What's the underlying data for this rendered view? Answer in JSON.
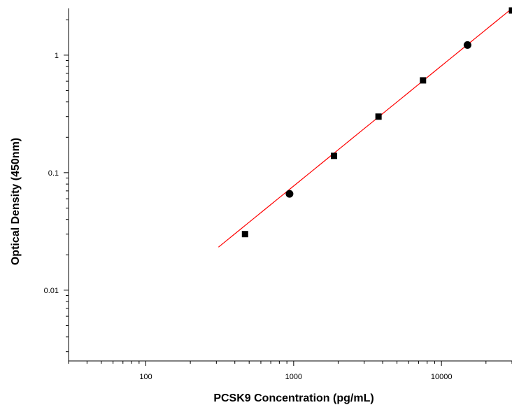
{
  "chart_data": {
    "type": "scatter",
    "title": "",
    "xlabel": "PCSK9 Concentration (pg/mL)",
    "ylabel": "Optical Density (450nm)",
    "x_scale": "log",
    "y_scale": "log",
    "xlim": [
      30,
      30000
    ],
    "ylim": [
      0.0025,
      2.5
    ],
    "grid": false,
    "legend": "none",
    "x_ticks": [
      {
        "value": 100,
        "label": "100"
      },
      {
        "value": 1000,
        "label": "1000"
      },
      {
        "value": 10000,
        "label": "10000"
      }
    ],
    "y_ticks": [
      {
        "value": 0.01,
        "label": "0.01"
      },
      {
        "value": 0.1,
        "label": "0.1"
      },
      {
        "value": 1,
        "label": "1"
      }
    ],
    "series": [
      {
        "type": "scatter",
        "color": "#000000",
        "points": [
          {
            "x": 468.75,
            "y": 0.03,
            "marker": "square"
          },
          {
            "x": 937.5,
            "y": 0.066,
            "marker": "circle"
          },
          {
            "x": 1875,
            "y": 0.139,
            "marker": "square"
          },
          {
            "x": 3750,
            "y": 0.3,
            "marker": "square"
          },
          {
            "x": 7500,
            "y": 0.61,
            "marker": "square"
          },
          {
            "x": 15000,
            "y": 1.22,
            "marker": "circle"
          },
          {
            "x": 30000,
            "y": 2.4,
            "marker": "square"
          }
        ]
      },
      {
        "type": "line",
        "color": "#ff0000",
        "fit_range": [
          310,
          30000
        ],
        "fit": {
          "model": "power",
          "a": 6.57e-05,
          "b": 1.023
        }
      }
    ]
  }
}
